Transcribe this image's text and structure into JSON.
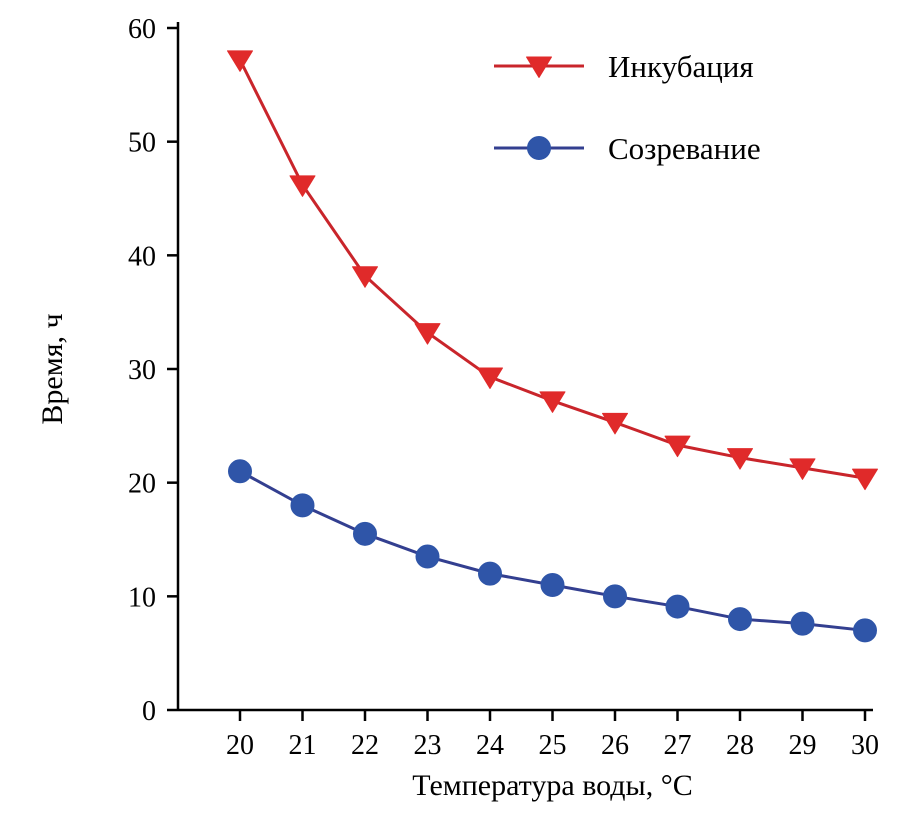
{
  "chart_data": {
    "type": "line",
    "title": "",
    "xlabel": "Температура воды, °С",
    "ylabel": "Время, ч",
    "x": [
      20,
      21,
      22,
      23,
      24,
      25,
      26,
      27,
      28,
      29,
      30
    ],
    "xlim": [
      19.0,
      30.15
    ],
    "ylim": [
      0,
      60
    ],
    "yticks": [
      0,
      10,
      20,
      30,
      40,
      50,
      60
    ],
    "xticks": [
      20,
      21,
      22,
      23,
      24,
      25,
      26,
      27,
      28,
      29,
      30
    ],
    "grid": false,
    "legend_position": "top-right-inside",
    "axis_color": "#000000",
    "series": [
      {
        "name": "Инкубация",
        "marker": "triangle-down",
        "line_color": "#c9252b",
        "marker_color": "#e02a2a",
        "values": [
          57.2,
          46.2,
          38.2,
          33.2,
          29.3,
          27.2,
          25.3,
          23.3,
          22.2,
          21.3,
          20.4
        ]
      },
      {
        "name": "Созревание",
        "marker": "circle",
        "line_color": "#333f90",
        "marker_color": "#2f55a8",
        "values": [
          21.0,
          18.0,
          15.5,
          13.5,
          12.0,
          11.0,
          10.0,
          9.1,
          8.0,
          7.6,
          7.0
        ]
      }
    ]
  }
}
